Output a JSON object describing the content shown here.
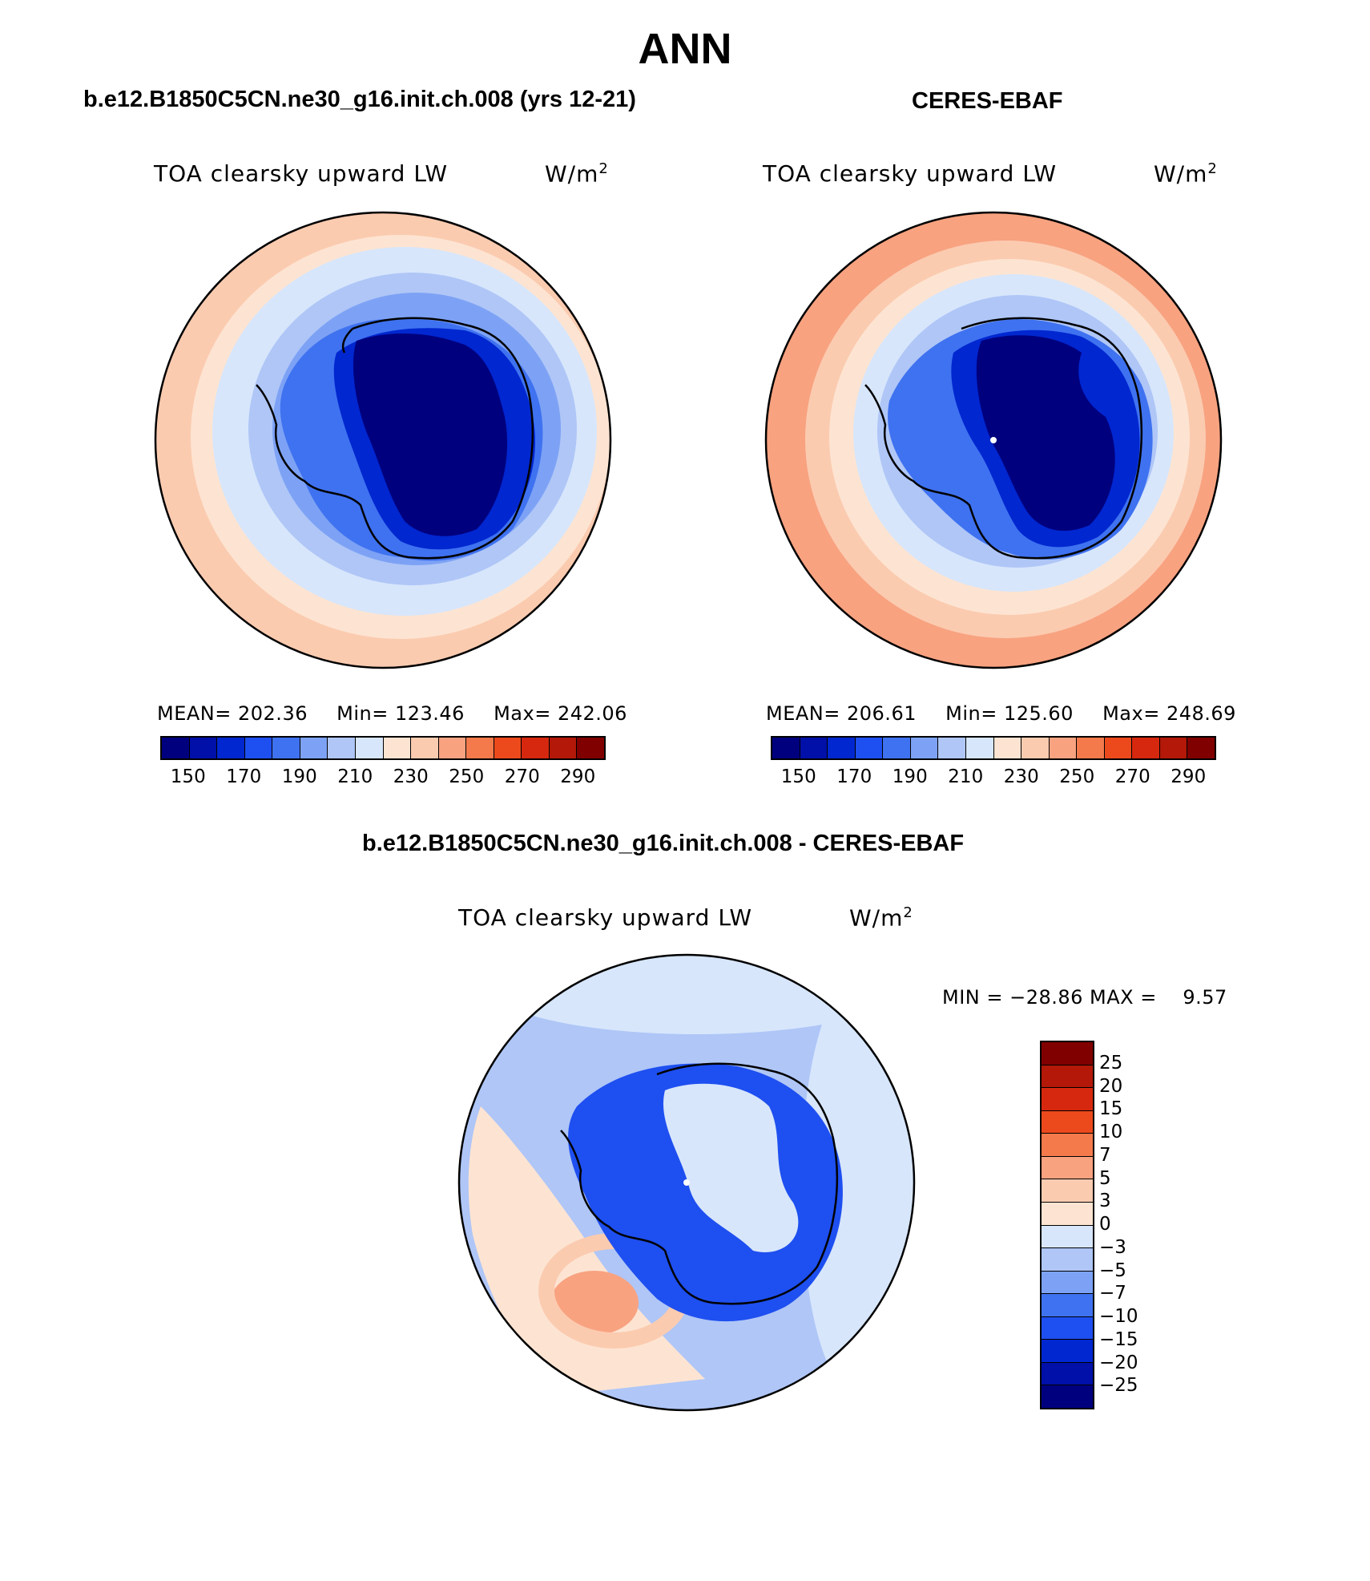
{
  "page_title": "ANN",
  "panels": [
    {
      "case_title": "b.e12.B1850C5CN.ne30_g16.init.ch.008 (yrs 12-21)",
      "field_label": "TOA clearsky upward LW",
      "units": "W/m",
      "units_sup": "2",
      "stats": {
        "mean_label": "MEAN=",
        "mean": "202.36",
        "min_label": "Min=",
        "min": "123.46",
        "max_label": "Max=",
        "max": "242.06"
      }
    },
    {
      "case_title": "CERES-EBAF",
      "field_label": "TOA clearsky upward LW",
      "units": "W/m",
      "units_sup": "2",
      "stats": {
        "mean_label": "MEAN=",
        "mean": "206.61",
        "min_label": "Min=",
        "min": "125.60",
        "max_label": "Max=",
        "max": "248.69"
      }
    }
  ],
  "diff_panel": {
    "case_title": "b.e12.B1850C5CN.ne30_g16.init.ch.008 - CERES-EBAF",
    "field_label": "TOA clearsky upward LW",
    "units": "W/m",
    "units_sup": "2",
    "minmax": "MIN = −28.86 MAX =    9.57"
  },
  "colors": {
    "abs_scale": [
      "#00007f",
      "#0010a8",
      "#0027d0",
      "#1e4ff0",
      "#3f72f0",
      "#7da2f5",
      "#afc6f7",
      "#d7e6fb",
      "#fde4d2",
      "#fbcbb0",
      "#f8a280",
      "#f47a4c",
      "#ec4a1c",
      "#d6280e",
      "#b31808",
      "#800000"
    ],
    "diff_scale": [
      "#00007f",
      "#0010a8",
      "#0027d0",
      "#1e4ff0",
      "#3f72f0",
      "#7da2f5",
      "#afc6f7",
      "#d7e6fb",
      "#fde4d2",
      "#fbcbb0",
      "#f8a280",
      "#f47a4c",
      "#ec4a1c",
      "#d6280e",
      "#b31808",
      "#800000"
    ]
  },
  "chart_data": [
    {
      "type": "heatmap",
      "title": "TOA clearsky upward LW",
      "projection": "south polar stereographic",
      "colorbar_levels": [
        150,
        160,
        170,
        180,
        190,
        200,
        210,
        220,
        230,
        240,
        250,
        260,
        270,
        280,
        290
      ],
      "colorbar_tick_labels": [
        "150",
        "170",
        "190",
        "210",
        "230",
        "250",
        "270",
        "290"
      ],
      "mean": 202.36,
      "min": 123.46,
      "max": 242.06
    },
    {
      "type": "heatmap",
      "title": "TOA clearsky upward LW",
      "projection": "south polar stereographic",
      "colorbar_levels": [
        150,
        160,
        170,
        180,
        190,
        200,
        210,
        220,
        230,
        240,
        250,
        260,
        270,
        280,
        290
      ],
      "colorbar_tick_labels": [
        "150",
        "170",
        "190",
        "210",
        "230",
        "250",
        "270",
        "290"
      ],
      "mean": 206.61,
      "min": 125.6,
      "max": 248.69
    },
    {
      "type": "heatmap",
      "title": "TOA clearsky upward LW",
      "projection": "south polar stereographic",
      "colorbar_levels": [
        -25,
        -20,
        -15,
        -10,
        -7,
        -5,
        -3,
        0,
        3,
        5,
        7,
        10,
        15,
        20,
        25
      ],
      "colorbar_tick_labels": [
        "25",
        "20",
        "15",
        "10",
        "7",
        "5",
        "3",
        "0",
        "−3",
        "−5",
        "−7",
        "−10",
        "−15",
        "−20",
        "−25"
      ],
      "min": -28.86,
      "max": 9.57
    }
  ]
}
